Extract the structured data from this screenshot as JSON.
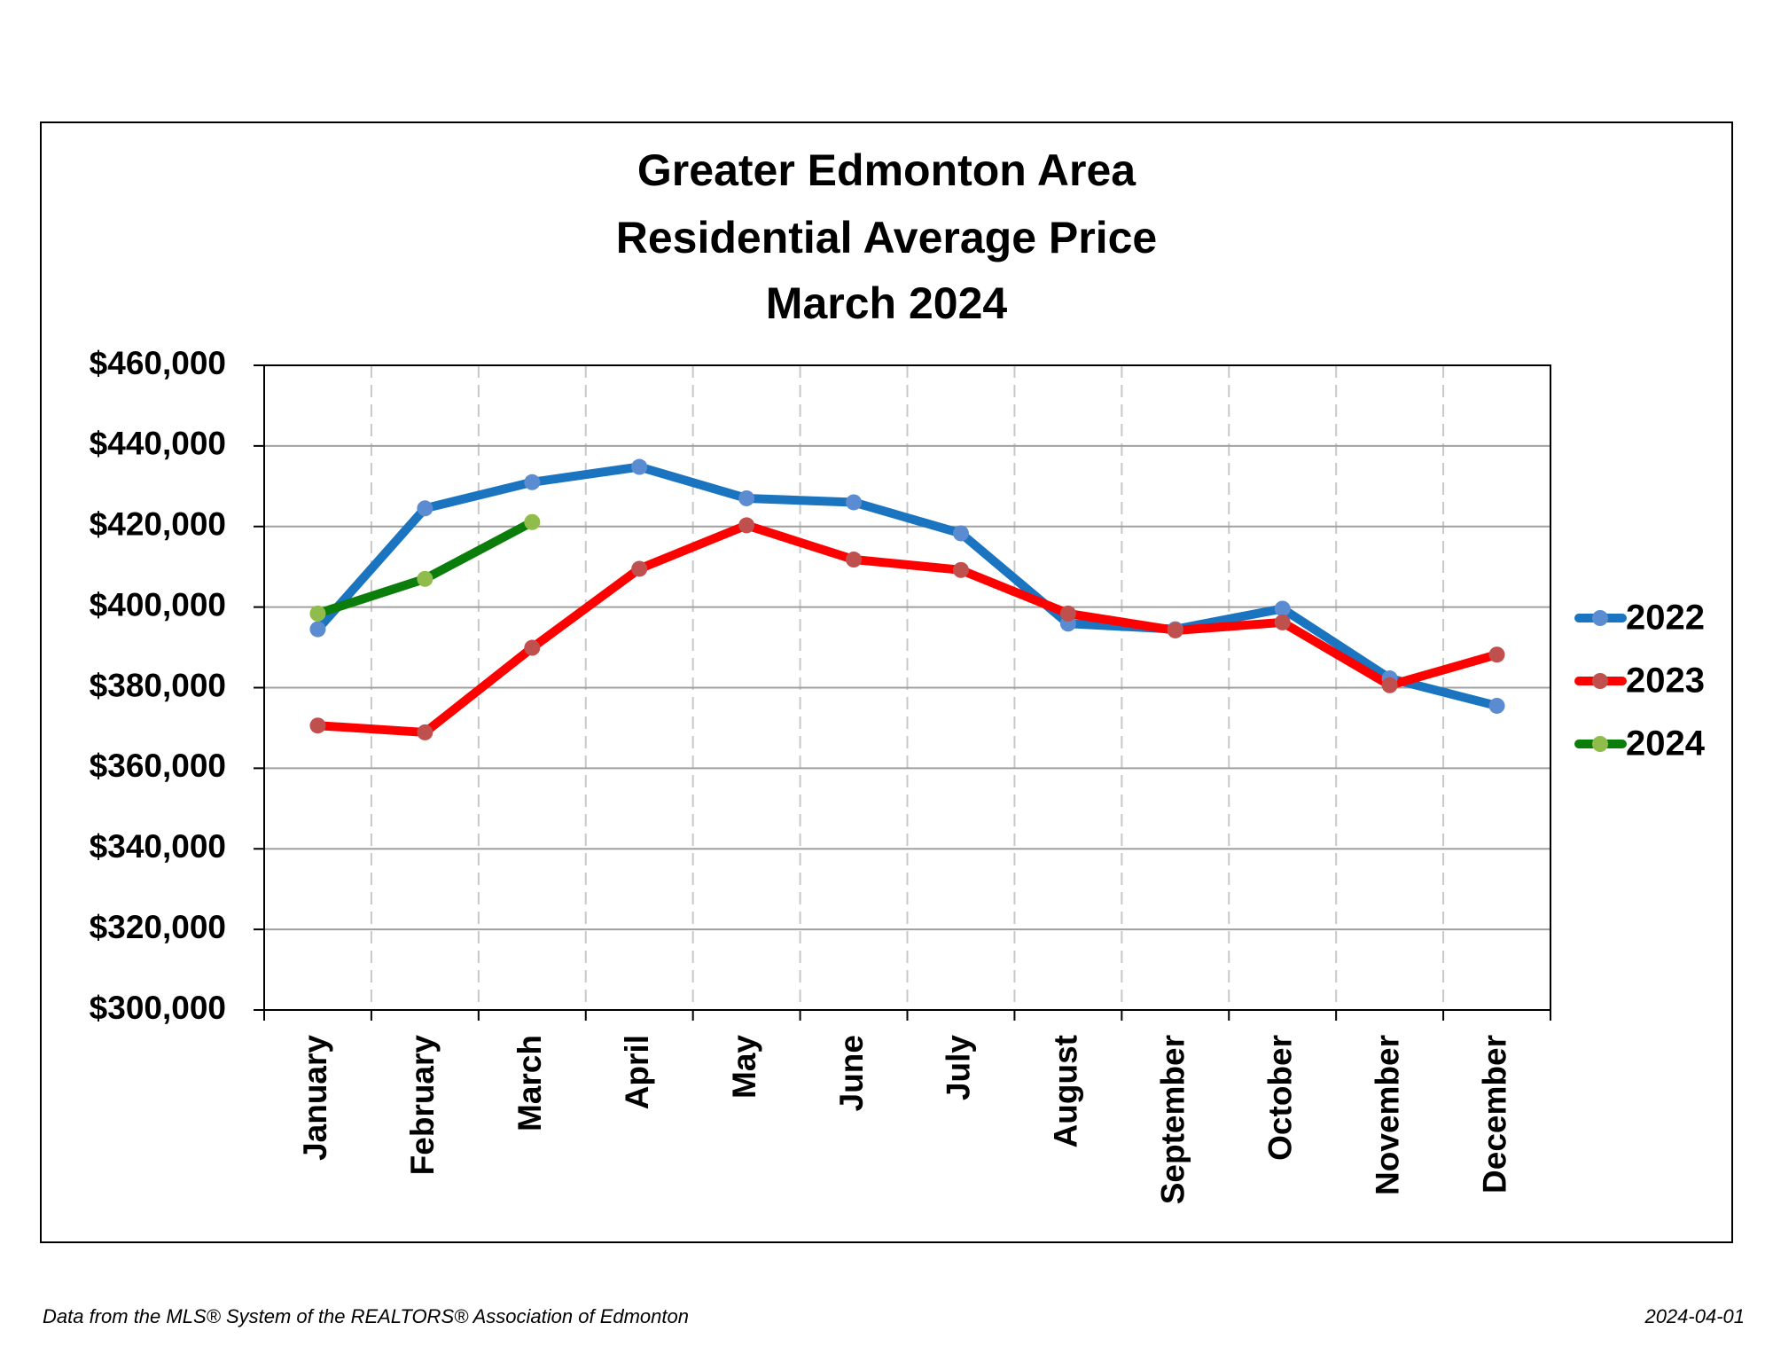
{
  "chart_data": {
    "type": "line",
    "title": [
      "Greater Edmonton Area",
      "Residential Average Price",
      "March 2024"
    ],
    "categories": [
      "January",
      "February",
      "March",
      "April",
      "May",
      "June",
      "July",
      "August",
      "September",
      "October",
      "November",
      "December"
    ],
    "series": [
      {
        "name": "2022",
        "color": "#1a74c0",
        "marker_color": "#5b8bd0",
        "values": [
          394500,
          424500,
          431000,
          434800,
          427000,
          426000,
          418300,
          395900,
          394500,
          399600,
          382300,
          375500
        ]
      },
      {
        "name": "2023",
        "color": "#ff0000",
        "marker_color": "#c0504d",
        "values": [
          370600,
          368900,
          389900,
          409500,
          420300,
          411800,
          409200,
          398400,
          394200,
          396200,
          380600,
          388200
        ]
      },
      {
        "name": "2024",
        "color": "#0a7d0a",
        "marker_color": "#8fbc4a",
        "values": [
          398400,
          407000,
          421100,
          null,
          null,
          null,
          null,
          null,
          null,
          null,
          null,
          null
        ]
      }
    ],
    "ylim": [
      300000,
      460000
    ],
    "yticks": [
      {
        "value": 300000,
        "label": "$300,000"
      },
      {
        "value": 320000,
        "label": "$320,000"
      },
      {
        "value": 340000,
        "label": "$340,000"
      },
      {
        "value": 360000,
        "label": "$360,000"
      },
      {
        "value": 380000,
        "label": "$380,000"
      },
      {
        "value": 400000,
        "label": "$400,000"
      },
      {
        "value": 420000,
        "label": "$420,000"
      },
      {
        "value": 440000,
        "label": "$440,000"
      },
      {
        "value": 460000,
        "label": "$460,000"
      }
    ],
    "grid": true,
    "legend": "right",
    "source": "Data from the MLS® System of the REALTORS® Association of Edmonton",
    "date": "2024-04-01"
  }
}
